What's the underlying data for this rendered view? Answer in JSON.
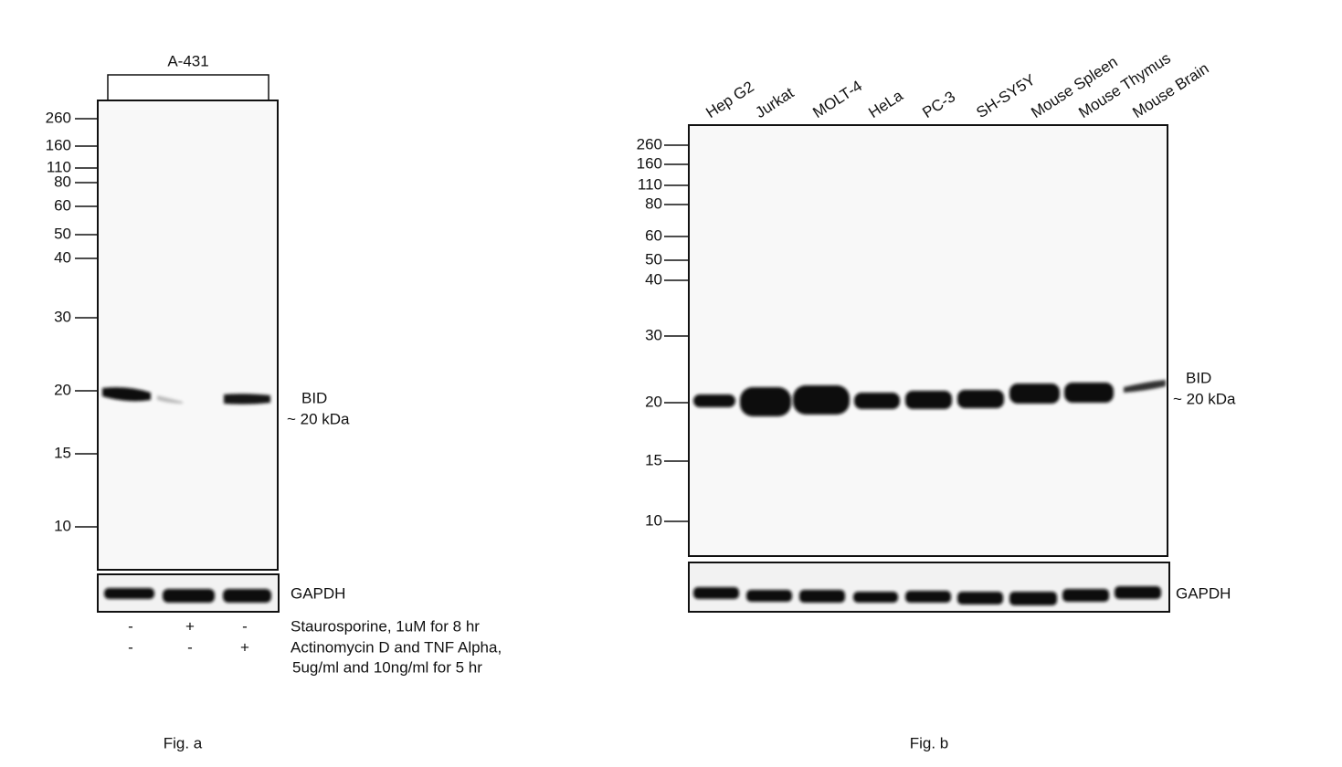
{
  "fig_a": {
    "cell_line": "A-431",
    "markers": [
      "260",
      "160",
      "110",
      "80",
      "60",
      "50",
      "40",
      "30",
      "20",
      "15",
      "10"
    ],
    "band_label": "BID",
    "band_size": "~ 20 kDa",
    "loading_control": "GAPDH",
    "treatments": [
      {
        "signs": [
          "-",
          "+",
          "-"
        ],
        "label": [
          "Staurosporine, 1uM for 8 hr"
        ]
      },
      {
        "signs": [
          "-",
          "-",
          "+"
        ],
        "label": [
          "Actinomycin D and TNF Alpha,",
          "5ug/ml and 10ng/ml for 5 hr"
        ]
      }
    ],
    "caption": "Fig. a"
  },
  "fig_b": {
    "lanes": [
      "Hep G2",
      "Jurkat",
      "MOLT-4",
      "HeLa",
      "PC-3",
      "SH-SY5Y",
      "Mouse Spleen",
      "Mouse Thymus",
      "Mouse Brain"
    ],
    "markers": [
      "260",
      "160",
      "110",
      "80",
      "60",
      "50",
      "40",
      "30",
      "20",
      "15",
      "10"
    ],
    "band_label": "BID",
    "band_size": "~ 20 kDa",
    "loading_control": "GAPDH",
    "caption": "Fig. b"
  }
}
